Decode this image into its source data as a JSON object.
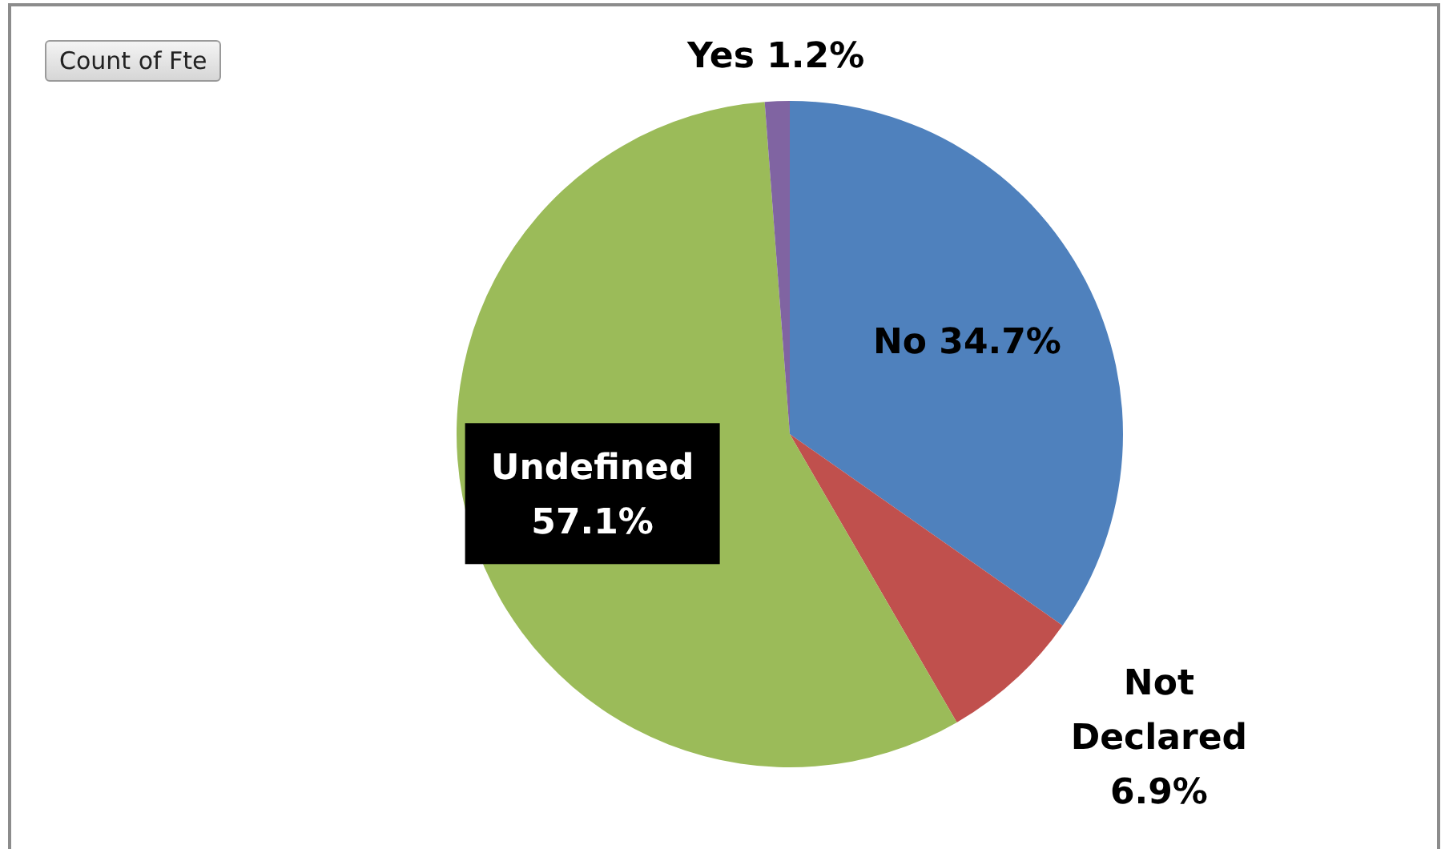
{
  "chart_data": {
    "type": "pie",
    "categories": [
      "No",
      "Not Declared",
      "Undefined",
      "Yes"
    ],
    "values": [
      34.7,
      6.9,
      57.1,
      1.2
    ],
    "value_labels": [
      "34.7%",
      "6.9%",
      "57.1%",
      "1.2%"
    ],
    "colors": [
      "#4f81bd",
      "#c0504d",
      "#9bbb59",
      "#8064a2"
    ],
    "annotations": [
      "Count of Fte"
    ],
    "legend": false
  }
}
